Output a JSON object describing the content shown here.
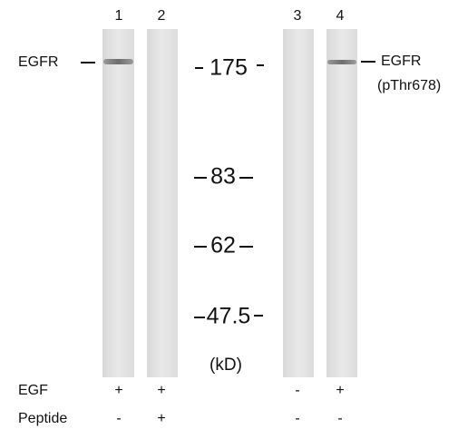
{
  "lanes": [
    {
      "number": "1",
      "egf": "+",
      "peptide": "-"
    },
    {
      "number": "2",
      "egf": "+",
      "peptide": "+"
    },
    {
      "number": "3",
      "egf": "-",
      "peptide": "-"
    },
    {
      "number": "4",
      "egf": "+",
      "peptide": "-"
    }
  ],
  "markers": [
    "175",
    "83",
    "62",
    "47.5"
  ],
  "unit": "(kD)",
  "left_label": "EGFR",
  "right_label": {
    "name": "EGFR",
    "site": "(pThr678)"
  },
  "row_labels": {
    "egf": "EGF",
    "peptide": "Peptide"
  }
}
